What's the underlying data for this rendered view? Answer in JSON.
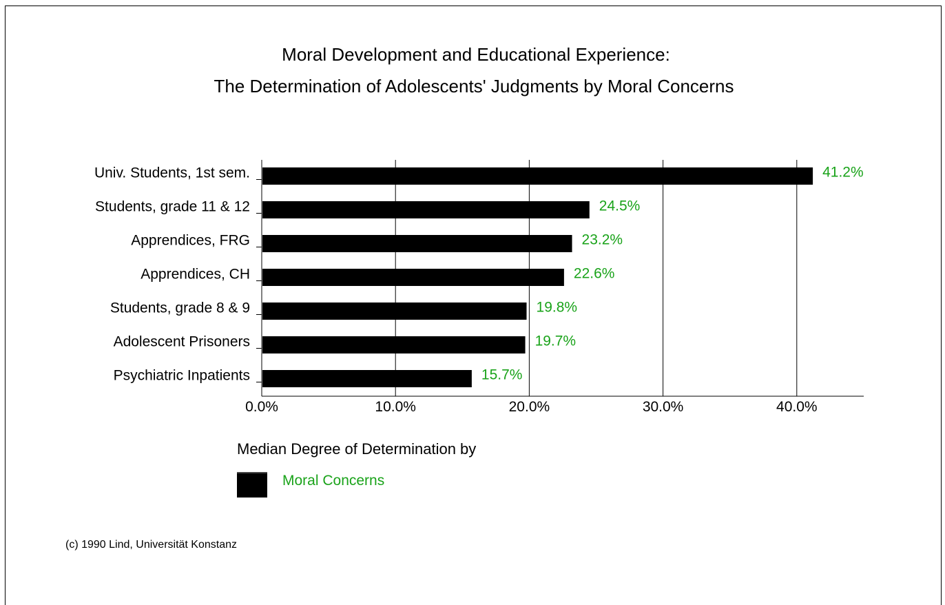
{
  "chart_data": {
    "type": "bar",
    "orientation": "horizontal",
    "title": [
      "Moral Development and Educational Experience:",
      "The Determination of Adolescents' Judgments by Moral Concerns"
    ],
    "categories": [
      "Univ. Students, 1st sem.",
      "Students, grade 11 & 12",
      "Apprendices, FRG",
      "Apprendices, CH",
      "Students, grade 8 & 9",
      "Adolescent Prisoners",
      "Psychiatric Inpatients"
    ],
    "series": [
      {
        "name": "Moral Concerns",
        "values": [
          41.2,
          24.5,
          23.2,
          22.6,
          19.8,
          19.7,
          15.7
        ],
        "labels": [
          "41.2%",
          "24.5%",
          "23.2%",
          "22.6%",
          "19.8%",
          "19.7%",
          "15.7%"
        ]
      }
    ],
    "xlim": [
      0,
      45
    ],
    "xticks": [
      0,
      10,
      20,
      30,
      40
    ],
    "xtick_labels": [
      "0.0%",
      "10.0%",
      "20.0%",
      "30.0%",
      "40.0%"
    ],
    "xlabel": "Median Degree of Determination by",
    "grid": "vertical",
    "legend_position": "bottom-left",
    "bar_color": "#000000",
    "label_color": "#1aa31a"
  },
  "footer": "(c) 1990 Lind, Universität Konstanz"
}
